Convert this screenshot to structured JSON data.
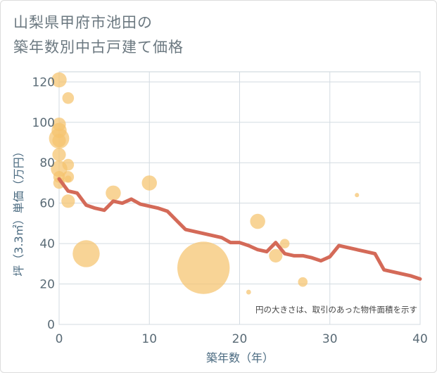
{
  "title_lines": [
    "山梨県甲府市池田の",
    "築年数別中古戸建て価格"
  ],
  "chart_data": {
    "type": "scatter",
    "title": "山梨県甲府市池田の築年数別中古戸建て価格",
    "xlabel": "築年数（年）",
    "ylabel": "坪（3.3㎡）単価（万円）",
    "xlim": [
      0,
      40
    ],
    "ylim": [
      0,
      125
    ],
    "x_ticks": [
      0,
      10,
      20,
      30,
      40
    ],
    "y_ticks": [
      0,
      20,
      40,
      60,
      80,
      100,
      120
    ],
    "grid": true,
    "note": "円の大きさは、取引のあった物件面積を示す",
    "bubble_color": "#f5c46e",
    "line_color": "#d46a58",
    "points": [
      {
        "x": 0,
        "y": 121,
        "size": 5
      },
      {
        "x": 0,
        "y": 99,
        "size": 4
      },
      {
        "x": 0,
        "y": 96,
        "size": 5
      },
      {
        "x": 0,
        "y": 92,
        "size": 9
      },
      {
        "x": 0,
        "y": 91,
        "size": 4
      },
      {
        "x": 0,
        "y": 84,
        "size": 4
      },
      {
        "x": 0,
        "y": 77,
        "size": 6
      },
      {
        "x": 0,
        "y": 73,
        "size": 3
      },
      {
        "x": 0,
        "y": 70,
        "size": 3
      },
      {
        "x": 1,
        "y": 112,
        "size": 3
      },
      {
        "x": 1,
        "y": 79,
        "size": 3
      },
      {
        "x": 1,
        "y": 73,
        "size": 3
      },
      {
        "x": 1,
        "y": 72,
        "size": 1
      },
      {
        "x": 1,
        "y": 61,
        "size": 4
      },
      {
        "x": 3,
        "y": 35,
        "size": 16
      },
      {
        "x": 6,
        "y": 65,
        "size": 5
      },
      {
        "x": 10,
        "y": 70,
        "size": 5
      },
      {
        "x": 16,
        "y": 28,
        "size": 60
      },
      {
        "x": 21,
        "y": 16,
        "size": 0.5
      },
      {
        "x": 22,
        "y": 51,
        "size": 5
      },
      {
        "x": 24,
        "y": 34,
        "size": 4
      },
      {
        "x": 25,
        "y": 40,
        "size": 2
      },
      {
        "x": 27,
        "y": 21,
        "size": 2
      },
      {
        "x": 33,
        "y": 64,
        "size": 0.4
      }
    ],
    "trend": {
      "x": [
        0,
        1,
        2,
        3,
        4,
        5,
        6,
        7,
        8,
        9,
        10,
        11,
        12,
        13,
        14,
        15,
        16,
        17,
        18,
        19,
        20,
        21,
        22,
        23,
        24,
        25,
        26,
        27,
        28,
        29,
        30,
        31,
        32,
        33,
        34,
        35,
        36,
        37,
        38,
        39,
        40
      ],
      "y": [
        72,
        66,
        65,
        59,
        57.5,
        56.5,
        61,
        60,
        62,
        59.5,
        58.5,
        57.5,
        56,
        51.5,
        47,
        46,
        45,
        44,
        43,
        40.5,
        40.5,
        39,
        37,
        36,
        40.5,
        35,
        34,
        34,
        33,
        31.5,
        33.5,
        39,
        38,
        37,
        36,
        35,
        27,
        26,
        25,
        24,
        22.5
      ]
    }
  }
}
